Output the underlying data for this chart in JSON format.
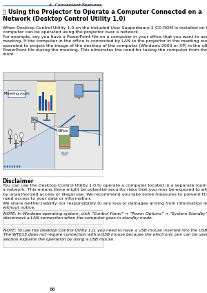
{
  "page_num": "66",
  "header_chapter": "4. Convenient Features",
  "section_symbol": "ⓣ",
  "section_title": " Using the Projector to Operate a Computer Connected on a\nNetwork (Desktop Control Utility 1.0)",
  "body_text": "When Desktop Control Utility 1.0 on the included User Supportware 2 CD-ROM is installed on the computer, that\ncomputer can be operated using the projector over a network.\nFor example, say you have a PowerPoint file on a computer in your office that you want to use for a presentation at a\nmeeting. If the computer in the office is connected by LAN to the projector in the meeting room, the projector can be\noperated to project the image of the desktop of the computer (Windows 2000 or XP) in the office and display the\nPowerPoint file during the meeting. This eliminates the need for taking the computer from the office to the meeting\nroom.",
  "disclaimer_title": "Disclaimer",
  "disclaimer_text": "You can use the Desktop Control Utility 1.0 to operate a computer located in a separate room from the projector over\na network. This means there might be potential security risks that you may be exposed to which could cause damage\nby unauthorized access or illegal use. We recommend you take some measures to prevent third parties from unautho-\nrized access to your data or information.\nWe share neither liability nor responsibility to any loss or damages arising from information leak or power down\nwithout notice.",
  "note1_text": "NOTE: In Windows operating system, click “Control Panel” → “Power Options” → “System Standby” → “Never”. This will\ndisconnect a LAN connection when the computer goes in standby mode.",
  "note2_text": "NOTE: To use the Desktop Control Utility 1.0, you need to have a USB mouse inserted into the USB port of the projector.\nThe WT615 does not require connection with a USB mouse because the electronic pen can be used for a USB mouse. This\nsection explains the operation by using a USB mouse.",
  "bg_color": "#ffffff",
  "header_line_color": "#1a5ca8",
  "text_color": "#000000",
  "note_border_color": "#bbbbbb",
  "diag_border_color": "#aaaaaa",
  "lan_color": "#1a5ca8",
  "screen_yellow": "#f5e84a",
  "bar_blue": "#2255aa",
  "bar_pink": "#dd6688",
  "label_border": "#1a5ca8"
}
